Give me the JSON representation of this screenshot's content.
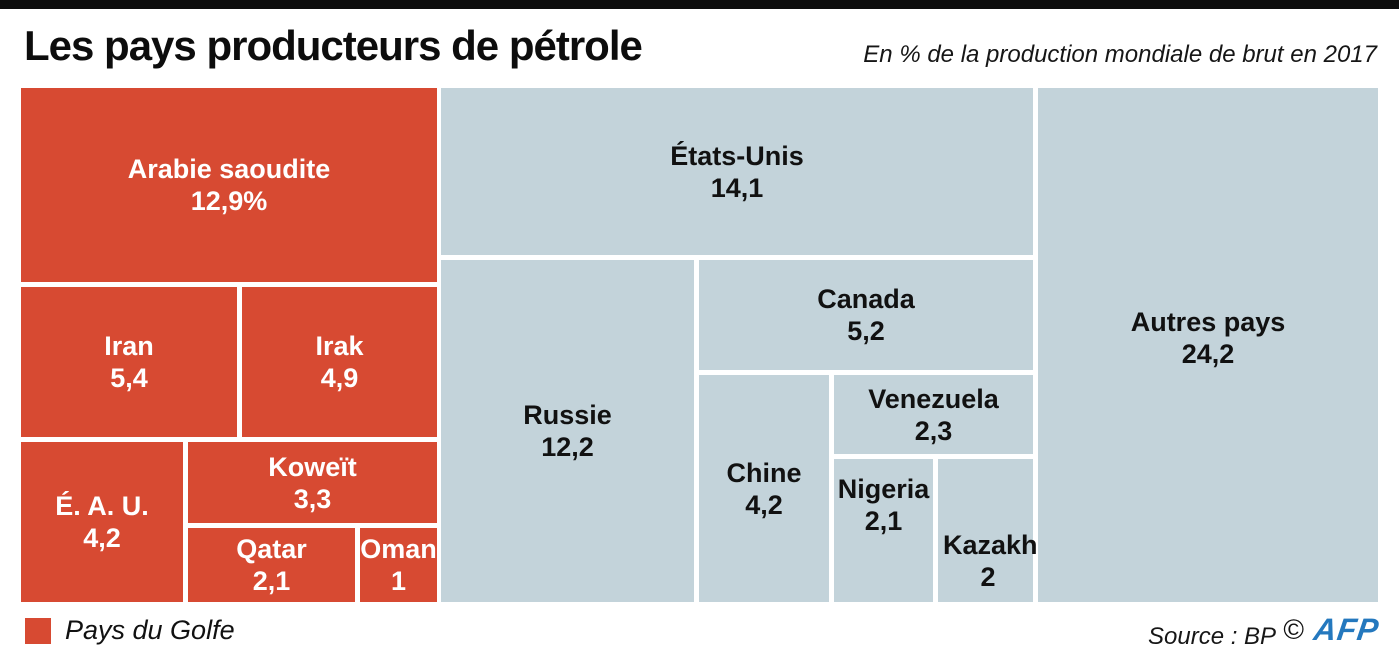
{
  "header": {
    "title": "Les pays producteurs de pétrole",
    "subtitle": "En % de la production mondiale de brut en 2017"
  },
  "legend": {
    "label": "Pays du Golfe",
    "swatch_color": "#d74a32"
  },
  "footer": {
    "source": "Source : BP",
    "copyright": "©",
    "brand": "AFP"
  },
  "colors": {
    "gulf_red": "#d74a32",
    "other_blue": "#c3d3da",
    "afp_blue": "#2478be"
  },
  "chart_data": {
    "type": "treemap",
    "title": "Les pays producteurs de pétrole",
    "unit_note": "En % de la production mondiale de brut en 2017",
    "legend": [
      {
        "label": "Pays du Golfe",
        "color": "#d74a32"
      }
    ],
    "items": [
      {
        "name": "Arabie saoudite",
        "value": 12.9,
        "label": "12,9%",
        "group": "Pays du Golfe"
      },
      {
        "name": "Iran",
        "value": 5.4,
        "label": "5,4",
        "group": "Pays du Golfe"
      },
      {
        "name": "Irak",
        "value": 4.9,
        "label": "4,9",
        "group": "Pays du Golfe"
      },
      {
        "name": "É. A. U.",
        "value": 4.2,
        "label": "4,2",
        "group": "Pays du Golfe"
      },
      {
        "name": "Koweït",
        "value": 3.3,
        "label": "3,3",
        "group": "Pays du Golfe"
      },
      {
        "name": "Qatar",
        "value": 2.1,
        "label": "2,1",
        "group": "Pays du Golfe"
      },
      {
        "name": "Oman",
        "value": 1,
        "label": "1",
        "group": "Pays du Golfe"
      },
      {
        "name": "États-Unis",
        "value": 14.1,
        "label": "14,1",
        "group": "Autres"
      },
      {
        "name": "Russie",
        "value": 12.2,
        "label": "12,2",
        "group": "Autres"
      },
      {
        "name": "Canada",
        "value": 5.2,
        "label": "5,2",
        "group": "Autres"
      },
      {
        "name": "Chine",
        "value": 4.2,
        "label": "4,2",
        "group": "Autres"
      },
      {
        "name": "Venezuela",
        "value": 2.3,
        "label": "2,3",
        "group": "Autres"
      },
      {
        "name": "Nigeria",
        "value": 2.1,
        "label": "2,1",
        "group": "Autres"
      },
      {
        "name": "Kazakhstan",
        "value": 2,
        "label": "2",
        "group": "Autres"
      },
      {
        "name": "Autres pays",
        "value": 24.2,
        "label": "24,2",
        "group": "Autres"
      }
    ]
  }
}
